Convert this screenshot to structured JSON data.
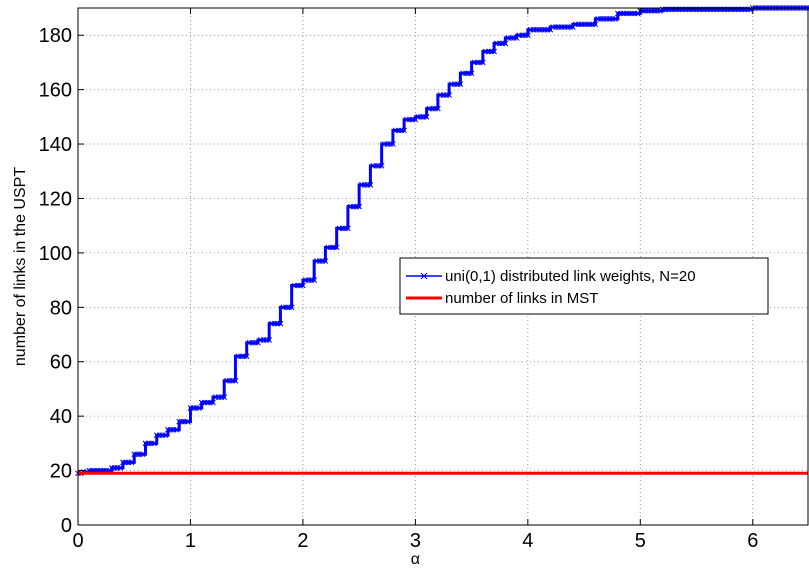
{
  "chart_data": {
    "type": "line",
    "xlabel": "α",
    "ylabel": "number of links in the USPT",
    "xlim": [
      0,
      6.5
    ],
    "ylim": [
      0,
      190
    ],
    "xticks": [
      "0",
      "1",
      "2",
      "3",
      "4",
      "5",
      "6"
    ],
    "yticks": [
      "0",
      "20",
      "40",
      "60",
      "80",
      "100",
      "120",
      "140",
      "160",
      "180"
    ],
    "grid": true,
    "legend_position": "center-right",
    "series": [
      {
        "name": "uni(0,1) distributed link weights, N=20",
        "color": "#0000ff",
        "marker": "x",
        "x": [
          0,
          0.05,
          0.1,
          0.2,
          0.3,
          0.4,
          0.5,
          0.6,
          0.7,
          0.8,
          0.9,
          1.0,
          1.1,
          1.2,
          1.3,
          1.4,
          1.5,
          1.6,
          1.7,
          1.8,
          1.9,
          2.0,
          2.1,
          2.2,
          2.3,
          2.4,
          2.5,
          2.6,
          2.7,
          2.8,
          2.9,
          3.0,
          3.1,
          3.2,
          3.3,
          3.4,
          3.5,
          3.6,
          3.7,
          3.8,
          3.9,
          4.0,
          4.2,
          4.4,
          4.6,
          4.8,
          5.0,
          5.2,
          5.5,
          6.0,
          6.5
        ],
        "y": [
          19,
          19.5,
          20,
          20,
          21,
          23,
          26,
          30,
          33,
          35,
          38,
          43,
          45,
          47,
          53,
          62,
          67,
          68,
          74,
          80,
          88,
          90,
          97,
          102,
          109,
          117,
          125,
          132,
          140,
          145,
          149,
          150,
          153,
          158,
          162,
          166,
          170,
          174,
          177,
          179,
          180,
          182,
          183,
          184,
          186,
          188,
          189,
          189.5,
          189.5,
          190,
          190
        ]
      },
      {
        "name": "number of links in MST",
        "color": "#ff0000",
        "x": [
          0,
          6.5
        ],
        "y": [
          19,
          19
        ]
      }
    ]
  }
}
